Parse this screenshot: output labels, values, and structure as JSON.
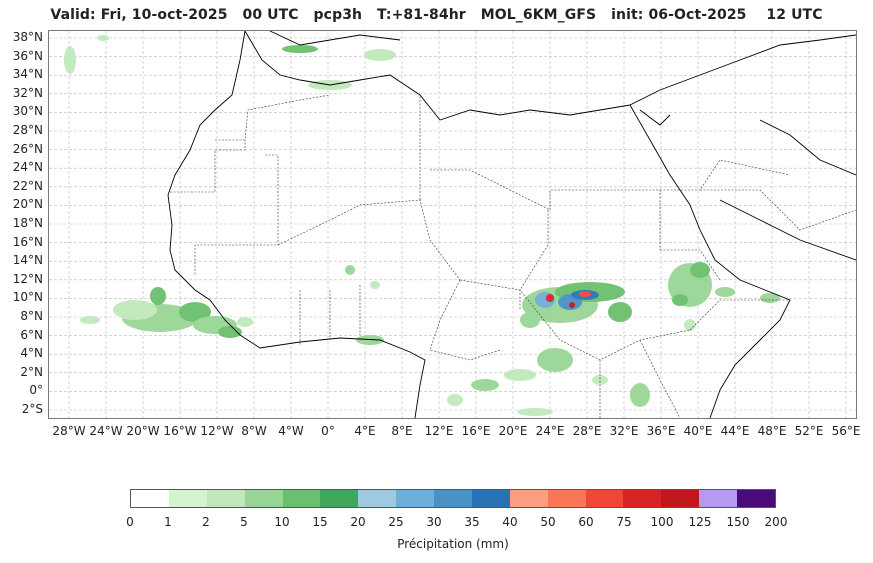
{
  "title": "Valid: Fri, 10-oct-2025   00 UTC   pcp3h   T:+81-84hr   MOL_6KM_GFS   init: 06-Oct-2025    12 UTC",
  "map": {
    "lat_labels": [
      "38°N",
      "36°N",
      "34°N",
      "32°N",
      "30°N",
      "28°N",
      "26°N",
      "24°N",
      "22°N",
      "20°N",
      "18°N",
      "16°N",
      "14°N",
      "12°N",
      "10°N",
      "8°N",
      "6°N",
      "4°N",
      "2°N",
      "0°",
      "2°S"
    ],
    "lon_labels": [
      "28°W",
      "24°W",
      "20°W",
      "16°W",
      "12°W",
      "8°W",
      "4°W",
      "0°",
      "4°E",
      "8°E",
      "12°E",
      "16°E",
      "20°E",
      "24°E",
      "28°E",
      "32°E",
      "36°E",
      "40°E",
      "44°E",
      "48°E",
      "52°E",
      "56°E"
    ],
    "coastline_color": "#000000",
    "border_color": "#333333",
    "grid_color": "#bbbbbb"
  },
  "colorbar": {
    "label": "Précipitation (mm)",
    "ticks": [
      "0",
      "1",
      "2",
      "5",
      "10",
      "15",
      "20",
      "25",
      "30",
      "35",
      "40",
      "50",
      "60",
      "75",
      "100",
      "125",
      "150",
      "200"
    ],
    "colors": [
      "#ffffff",
      "#d4f2d0",
      "#c0e8bb",
      "#98d594",
      "#6bbf6d",
      "#3fa75a",
      "#9ecae1",
      "#6faed6",
      "#4a91c4",
      "#2a72b6",
      "#fc9e82",
      "#fb7558",
      "#f0463a",
      "#d72424",
      "#c1161b",
      "#b59af0",
      "#4a0a7a"
    ]
  }
}
